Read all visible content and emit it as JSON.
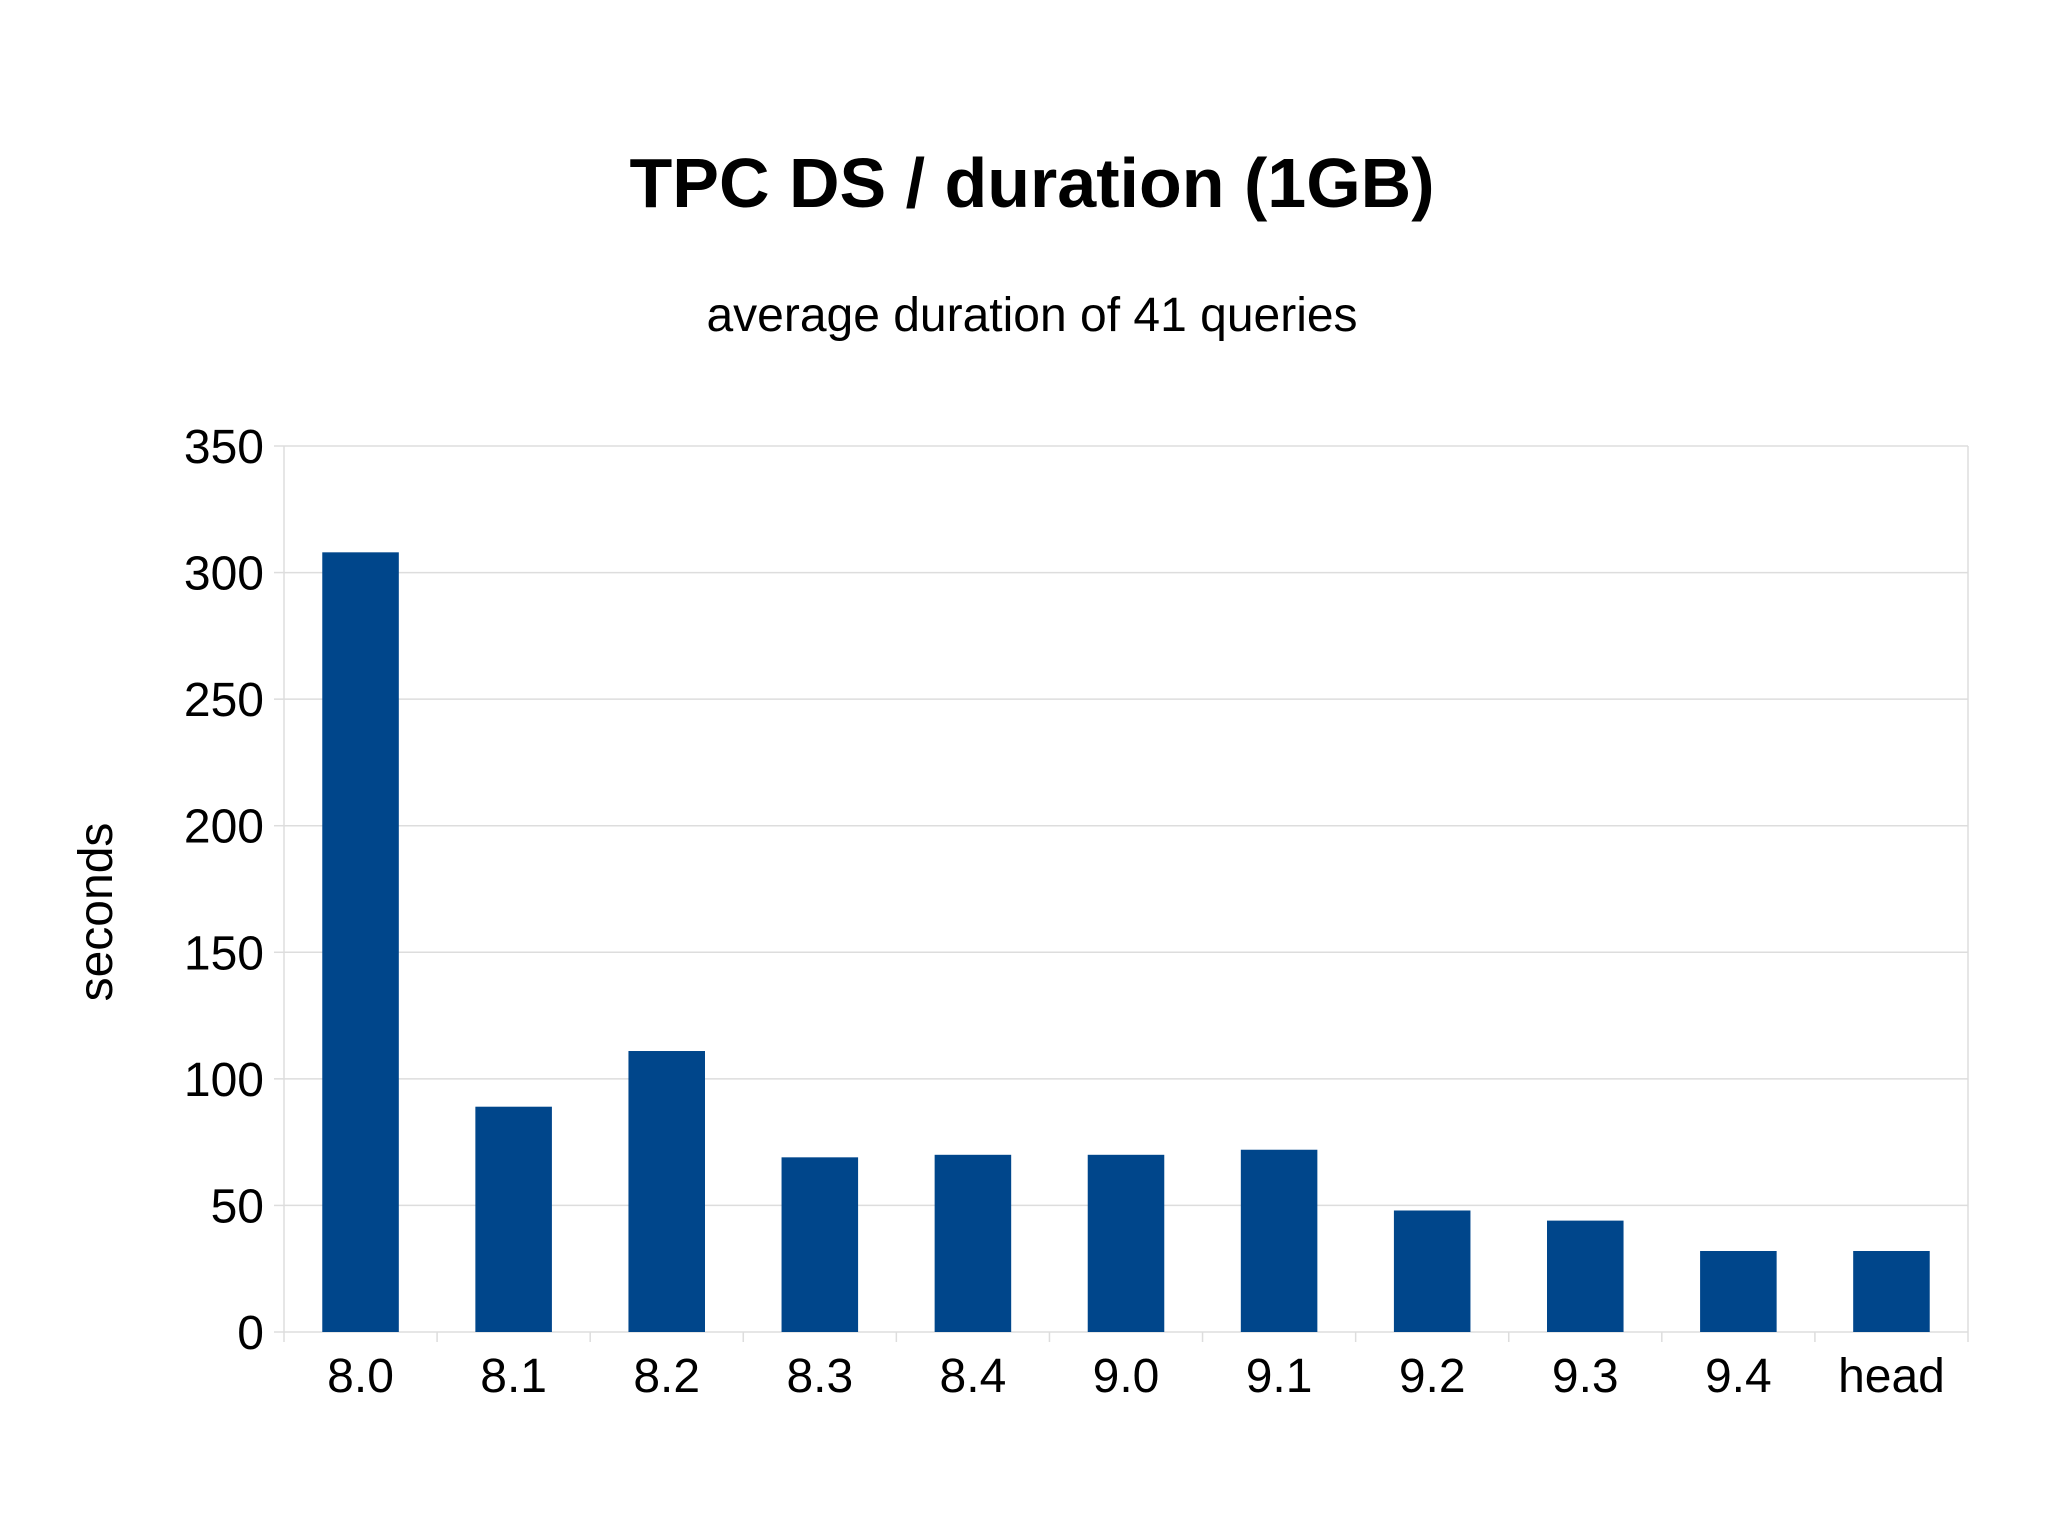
{
  "chart_data": {
    "type": "bar",
    "title": "TPC DS / duration (1GB)",
    "subtitle": "average duration of 41 queries",
    "xlabel": "",
    "ylabel": "seconds",
    "categories": [
      "8.0",
      "8.1",
      "8.2",
      "8.3",
      "8.4",
      "9.0",
      "9.1",
      "9.2",
      "9.3",
      "9.4",
      "head"
    ],
    "values": [
      308,
      89,
      111,
      69,
      70,
      70,
      72,
      48,
      44,
      32,
      32
    ],
    "ylim": [
      0,
      350
    ],
    "yticks": [
      "0",
      "50",
      "100",
      "150",
      "200",
      "250",
      "300",
      "350"
    ],
    "grid": true,
    "legend": "none",
    "bar_color": "#00468B",
    "grid_color": "#DDDDDD"
  }
}
